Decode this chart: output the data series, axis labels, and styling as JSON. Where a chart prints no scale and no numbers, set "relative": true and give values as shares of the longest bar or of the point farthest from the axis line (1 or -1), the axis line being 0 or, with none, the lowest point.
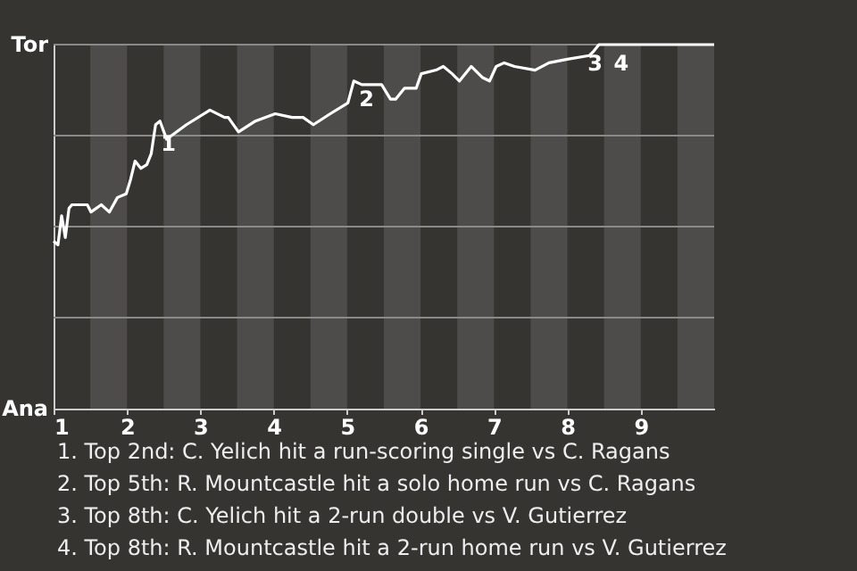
{
  "chart_data": {
    "type": "line",
    "relative": true,
    "x": [
      1.0,
      1.06,
      1.11,
      1.16,
      1.21,
      1.25,
      1.46,
      1.51,
      1.65,
      1.76,
      1.87,
      1.99,
      2.05,
      2.11,
      2.19,
      2.27,
      2.33,
      2.39,
      2.45,
      2.54,
      2.81,
      3.13,
      3.33,
      3.38,
      3.52,
      3.75,
      4.02,
      4.25,
      4.4,
      4.54,
      4.77,
      5.01,
      5.09,
      5.2,
      5.36,
      5.47,
      5.59,
      5.66,
      5.78,
      5.91,
      5.94,
      6.01,
      6.21,
      6.31,
      6.43,
      6.53,
      6.69,
      6.84,
      6.94,
      7.03,
      7.14,
      7.28,
      7.56,
      7.75,
      8.0,
      8.3,
      8.35,
      8.43,
      8.56,
      9.52,
      9.71,
      10.0
    ],
    "series": [
      {
        "color": "#ffffff",
        "values": [
          0.46,
          0.45,
          0.53,
          0.47,
          0.55,
          0.56,
          0.56,
          0.54,
          0.56,
          0.54,
          0.58,
          0.59,
          0.63,
          0.68,
          0.66,
          0.67,
          0.7,
          0.78,
          0.79,
          0.74,
          0.78,
          0.82,
          0.8,
          0.8,
          0.76,
          0.79,
          0.81,
          0.8,
          0.8,
          0.78,
          0.81,
          0.84,
          0.9,
          0.89,
          0.89,
          0.89,
          0.85,
          0.85,
          0.88,
          0.88,
          0.88,
          0.92,
          0.93,
          0.94,
          0.92,
          0.9,
          0.94,
          0.91,
          0.9,
          0.94,
          0.95,
          0.94,
          0.93,
          0.95,
          0.96,
          0.97,
          0.98,
          1,
          1,
          1,
          1,
          1
        ]
      }
    ],
    "xlim": [
      1,
      10
    ],
    "xticks": [
      1,
      2,
      3,
      4,
      5,
      6,
      7,
      8,
      9
    ],
    "line_style": "solid",
    "ref_lines": [
      {
        "axis": "y",
        "value": 0.25,
        "color": "#8a8a8a"
      },
      {
        "axis": "y",
        "value": 0.5,
        "color": "#8a8a8a"
      },
      {
        "axis": "y",
        "value": 0.75,
        "color": "#8a8a8a"
      },
      {
        "axis": "y",
        "value": 1,
        "color": "#8a8a8a"
      }
    ],
    "bands": [
      {
        "axis": "x",
        "from": 1.5,
        "to": 2,
        "color": "#4d4c4a"
      },
      {
        "axis": "x",
        "from": 2.5,
        "to": 3,
        "color": "#4d4c4a"
      },
      {
        "axis": "x",
        "from": 3.5,
        "to": 4,
        "color": "#4d4c4a"
      },
      {
        "axis": "x",
        "from": 4.5,
        "to": 5,
        "color": "#4d4c4a"
      },
      {
        "axis": "x",
        "from": 5.5,
        "to": 6,
        "color": "#4d4c4a"
      },
      {
        "axis": "x",
        "from": 6.5,
        "to": 7,
        "color": "#4d4c4a"
      },
      {
        "axis": "x",
        "from": 7.5,
        "to": 8,
        "color": "#4d4c4a"
      },
      {
        "axis": "x",
        "from": 8.5,
        "to": 9,
        "color": "#4d4c4a"
      },
      {
        "axis": "x",
        "from": 9.5,
        "to": 10,
        "color": "#4d4c4a"
      }
    ],
    "annotations": [
      "Tor",
      "Ana",
      {
        "text": "1",
        "x": 2.39,
        "y": 0.776
      },
      {
        "text": "2",
        "x": 5.09,
        "y": 0.899
      },
      {
        "text": "3",
        "x": 8.43,
        "y": 0.997
      },
      {
        "text": "4",
        "x": 8.56,
        "y": 0.997
      },
      "1. Top 2nd: C. Yelich hit a run-scoring single vs C. Ragans",
      "2. Top 5th: R. Mountcastle hit a solo home run vs C. Ragans",
      "3. Top 8th: C. Yelich hit a 2-run double vs V. Gutierrez",
      "4. Top 8th: R. Mountcastle hit a 2-run home run vs V. Gutierrez"
    ]
  }
}
